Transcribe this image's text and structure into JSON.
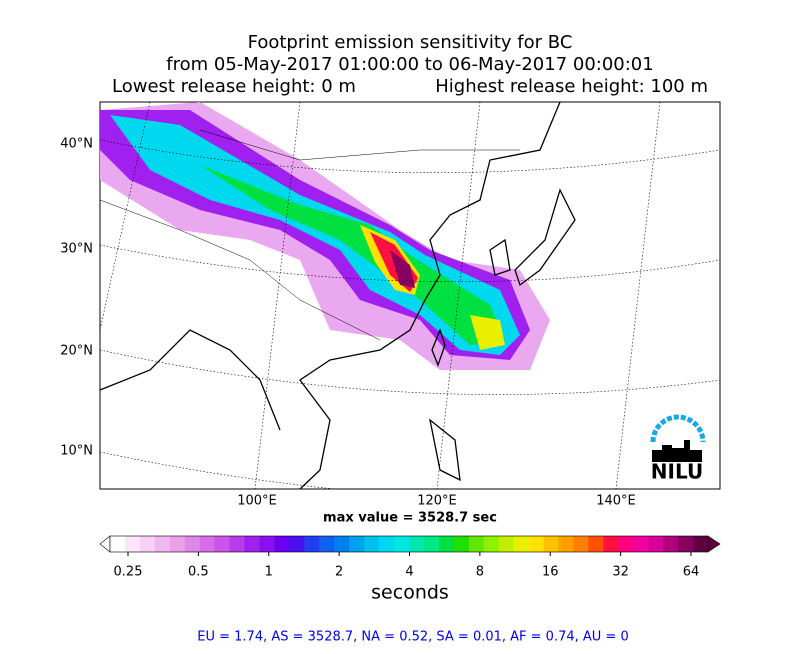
{
  "title": {
    "line1": "Footprint emission sensitivity for BC",
    "line2": "from 05-May-2017 01:00:00 to 06-May-2017 00:00:01",
    "line3_left": "Lowest release height: 0 m",
    "line3_right": "Highest release height: 100 m"
  },
  "map": {
    "lat_labels": [
      "40°N",
      "30°N",
      "20°N",
      "10°N"
    ],
    "lon_labels": [
      "100°E",
      "120°E",
      "140°E"
    ],
    "logo": "NILU"
  },
  "max_value": "max value = 3528.7 sec",
  "colorbar": {
    "ticks": [
      0.25,
      0.5,
      1,
      2,
      4,
      8,
      16,
      32,
      64
    ],
    "log": true,
    "label": "seconds",
    "colors": [
      "#ffffff",
      "#fbe6fb",
      "#f6d0f6",
      "#f0b8f0",
      "#eaa0ea",
      "#e088e8",
      "#d66ee8",
      "#c855e8",
      "#b83ce8",
      "#a020f0",
      "#8a10f0",
      "#6a00f0",
      "#4a10f0",
      "#2040f0",
      "#1060f0",
      "#0080f0",
      "#00a0f0",
      "#00c0f0",
      "#00d8f0",
      "#00e8e0",
      "#00e8b0",
      "#00e880",
      "#00e040",
      "#20e000",
      "#60e800",
      "#90f000",
      "#c0f000",
      "#e8f000",
      "#ffe000",
      "#ffc000",
      "#ffa000",
      "#ff8000",
      "#ff5000",
      "#ff1040",
      "#ff0080",
      "#f000a0",
      "#d80098",
      "#b00080",
      "#880060",
      "#600040"
    ]
  },
  "footer": "EU = 1.74,  AS = 3528.7,  NA = 0.52,  SA = 0.01,  AF = 0.74,  AU = 0"
}
